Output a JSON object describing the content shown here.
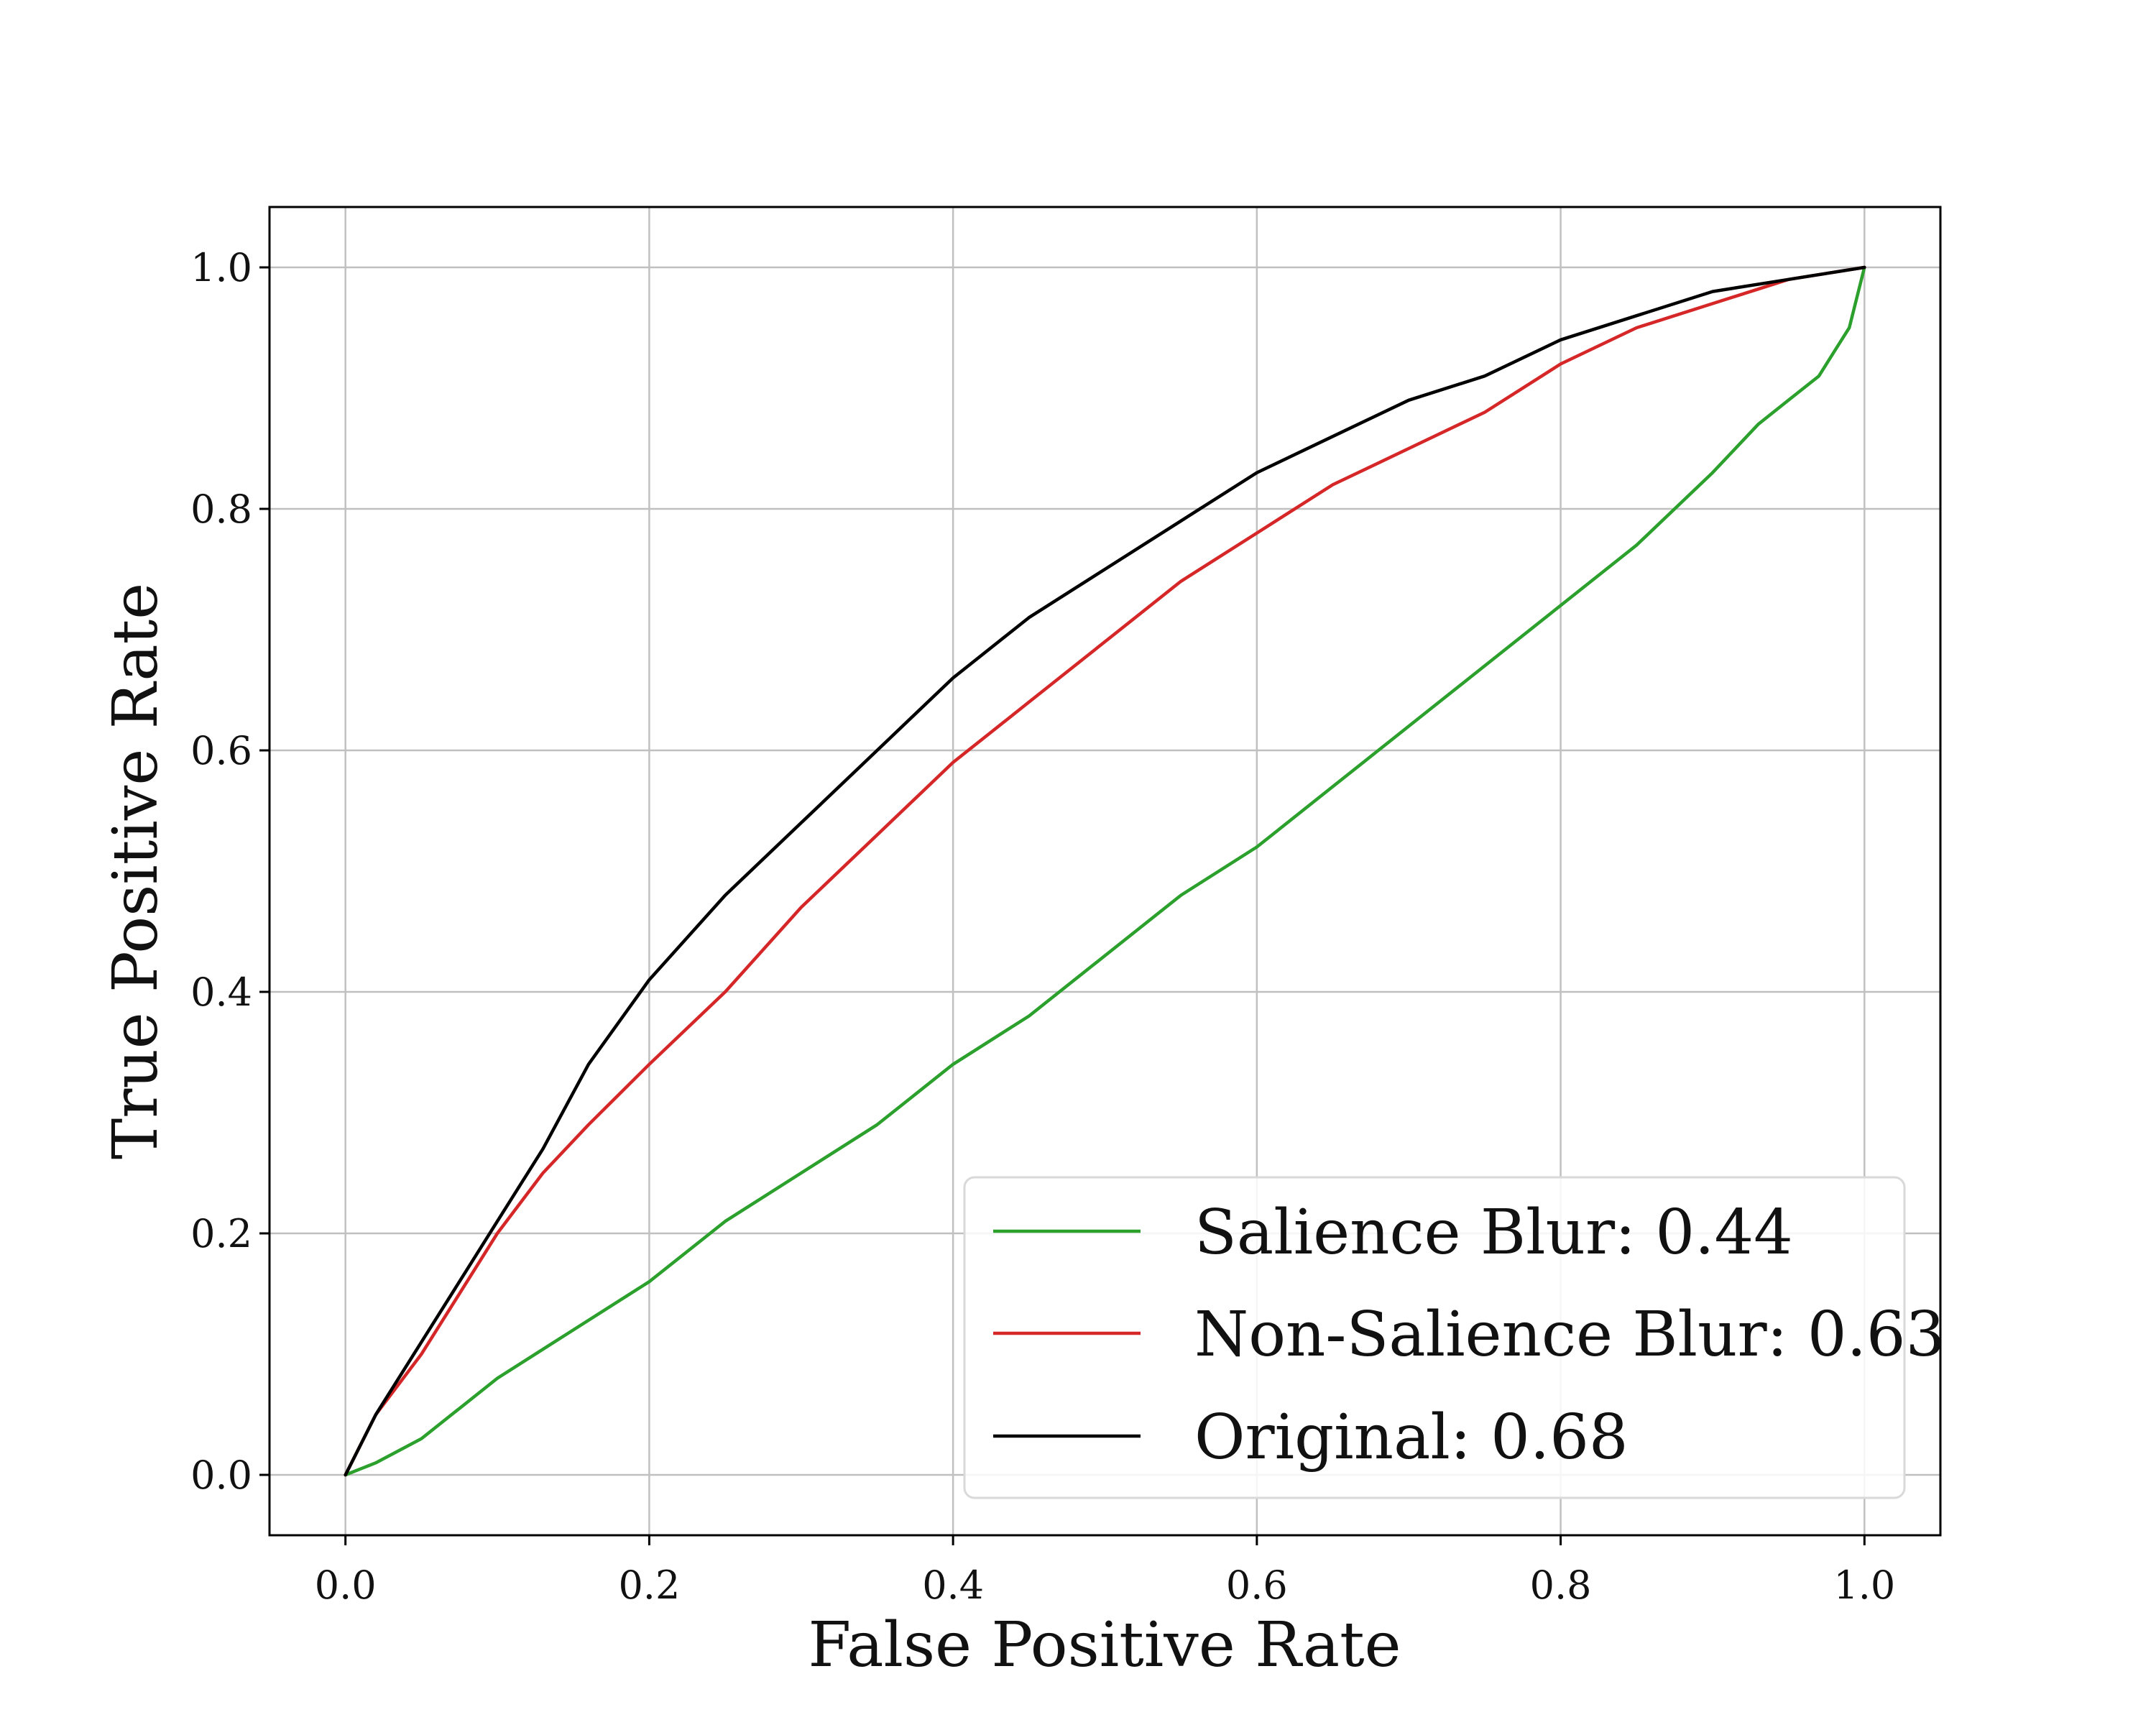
{
  "chart_data": {
    "type": "line",
    "title": "",
    "xlabel": "False Positive Rate",
    "ylabel": "True Positive Rate",
    "xlim": [
      -0.05,
      1.05
    ],
    "ylim": [
      -0.05,
      1.05
    ],
    "xticks": [
      0.0,
      0.2,
      0.4,
      0.6,
      0.8,
      1.0
    ],
    "yticks": [
      0.0,
      0.2,
      0.4,
      0.6,
      0.8,
      1.0
    ],
    "xtick_labels": [
      "0.0",
      "0.2",
      "0.4",
      "0.6",
      "0.8",
      "1.0"
    ],
    "ytick_labels": [
      "0.0",
      "0.2",
      "0.4",
      "0.6",
      "0.8",
      "1.0"
    ],
    "grid": true,
    "legend_position": "lower-right",
    "series": [
      {
        "name": "Salience Blur: 0.44",
        "color": "#2ca02c",
        "x": [
          0.0,
          0.02,
          0.05,
          0.08,
          0.1,
          0.15,
          0.2,
          0.25,
          0.3,
          0.35,
          0.4,
          0.45,
          0.5,
          0.55,
          0.6,
          0.65,
          0.7,
          0.75,
          0.8,
          0.85,
          0.9,
          0.93,
          0.95,
          0.97,
          0.98,
          0.99,
          1.0
        ],
        "y": [
          0.0,
          0.01,
          0.03,
          0.06,
          0.08,
          0.12,
          0.16,
          0.21,
          0.25,
          0.29,
          0.34,
          0.38,
          0.43,
          0.48,
          0.52,
          0.57,
          0.62,
          0.67,
          0.72,
          0.77,
          0.83,
          0.87,
          0.89,
          0.91,
          0.93,
          0.95,
          1.0
        ]
      },
      {
        "name": "Non-Salience Blur: 0.63",
        "color": "#d62728",
        "x": [
          0.0,
          0.02,
          0.05,
          0.08,
          0.1,
          0.13,
          0.16,
          0.2,
          0.25,
          0.3,
          0.35,
          0.4,
          0.45,
          0.5,
          0.55,
          0.6,
          0.65,
          0.7,
          0.75,
          0.8,
          0.85,
          0.9,
          0.95,
          1.0
        ],
        "y": [
          0.0,
          0.05,
          0.1,
          0.16,
          0.2,
          0.25,
          0.29,
          0.34,
          0.4,
          0.47,
          0.53,
          0.59,
          0.64,
          0.69,
          0.74,
          0.78,
          0.82,
          0.85,
          0.88,
          0.92,
          0.95,
          0.97,
          0.99,
          1.0
        ]
      },
      {
        "name": "Original: 0.68",
        "color": "#000000",
        "x": [
          0.0,
          0.02,
          0.05,
          0.08,
          0.1,
          0.13,
          0.16,
          0.2,
          0.25,
          0.3,
          0.35,
          0.4,
          0.45,
          0.5,
          0.55,
          0.6,
          0.65,
          0.7,
          0.75,
          0.8,
          0.85,
          0.9,
          0.95,
          1.0
        ],
        "y": [
          0.0,
          0.05,
          0.11,
          0.17,
          0.21,
          0.27,
          0.34,
          0.41,
          0.48,
          0.54,
          0.6,
          0.66,
          0.71,
          0.75,
          0.79,
          0.83,
          0.86,
          0.89,
          0.91,
          0.94,
          0.96,
          0.98,
          0.99,
          1.0
        ]
      }
    ]
  }
}
